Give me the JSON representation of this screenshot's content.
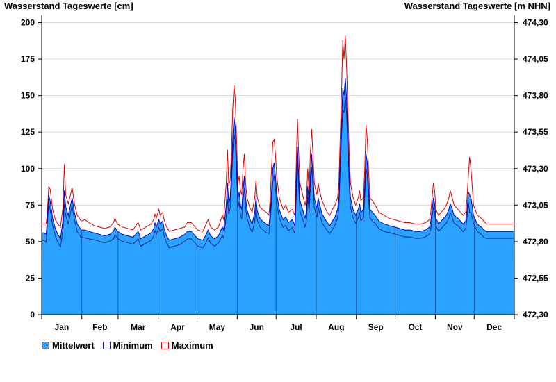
{
  "chart_data": {
    "type": "area",
    "left_axis_title": "Wasserstand Tageswerte [cm]",
    "right_axis_title": "Wasserstand Tageswerte [m NHN]",
    "ylim": [
      0,
      205
    ],
    "yticks": [
      0,
      25,
      50,
      75,
      100,
      125,
      150,
      175,
      200
    ],
    "right_ylim": [
      472.3,
      474.35
    ],
    "right_yticks": [
      "472,30",
      "472,55",
      "472,80",
      "473,05",
      "473,30",
      "473,55",
      "473,80",
      "474,05",
      "474,30"
    ],
    "months": [
      "Jan",
      "Feb",
      "Mar",
      "Apr",
      "May",
      "Jun",
      "Jul",
      "Aug",
      "Sep",
      "Oct",
      "Nov",
      "Dec"
    ],
    "month_days": [
      31,
      28,
      31,
      30,
      31,
      30,
      31,
      31,
      30,
      31,
      30,
      31
    ],
    "grid": true,
    "legend_position": "bottom-left",
    "colors": {
      "mean_fill": "#29a3ff",
      "min_line": "#1a1a80",
      "max_line": "#dd0000",
      "mean_line": "#0000cc"
    },
    "series": [
      {
        "name": "Mittelwert",
        "key": "mean"
      },
      {
        "name": "Minimum",
        "key": "min"
      },
      {
        "name": "Maximum",
        "key": "max"
      }
    ],
    "max_keypoints": [
      [
        1,
        62
      ],
      [
        3,
        62
      ],
      [
        4,
        72
      ],
      [
        5,
        88
      ],
      [
        6,
        86
      ],
      [
        8,
        72
      ],
      [
        10,
        65
      ],
      [
        12,
        62
      ],
      [
        14,
        60
      ],
      [
        16,
        74
      ],
      [
        17,
        103
      ],
      [
        18,
        82
      ],
      [
        20,
        76
      ],
      [
        22,
        83
      ],
      [
        23,
        87
      ],
      [
        25,
        75
      ],
      [
        27,
        68
      ],
      [
        30,
        64
      ],
      [
        33,
        65
      ],
      [
        36,
        63
      ],
      [
        40,
        61
      ],
      [
        44,
        60
      ],
      [
        48,
        59
      ],
      [
        52,
        60
      ],
      [
        55,
        63
      ],
      [
        56,
        66
      ],
      [
        58,
        62
      ],
      [
        62,
        60
      ],
      [
        66,
        59
      ],
      [
        70,
        58
      ],
      [
        73,
        62
      ],
      [
        74,
        63
      ],
      [
        76,
        58
      ],
      [
        80,
        60
      ],
      [
        84,
        62
      ],
      [
        86,
        65
      ],
      [
        87,
        69
      ],
      [
        88,
        66
      ],
      [
        90,
        72
      ],
      [
        91,
        68
      ],
      [
        93,
        70
      ],
      [
        94,
        65
      ],
      [
        96,
        60
      ],
      [
        98,
        57
      ],
      [
        102,
        58
      ],
      [
        106,
        59
      ],
      [
        110,
        60
      ],
      [
        112,
        63
      ],
      [
        115,
        63
      ],
      [
        118,
        60
      ],
      [
        120,
        58
      ],
      [
        124,
        57
      ],
      [
        126,
        61
      ],
      [
        128,
        65
      ],
      [
        130,
        60
      ],
      [
        133,
        58
      ],
      [
        136,
        60
      ],
      [
        139,
        68
      ],
      [
        140,
        65
      ],
      [
        142,
        90
      ],
      [
        143,
        113
      ],
      [
        144,
        88
      ],
      [
        145,
        92
      ],
      [
        146,
        110
      ],
      [
        147,
        140
      ],
      [
        148,
        157
      ],
      [
        149,
        147
      ],
      [
        150,
        120
      ],
      [
        151,
        90
      ],
      [
        152,
        95
      ],
      [
        153,
        85
      ],
      [
        154,
        82
      ],
      [
        155,
        100
      ],
      [
        156,
        110
      ],
      [
        157,
        90
      ],
      [
        158,
        80
      ],
      [
        160,
        74
      ],
      [
        162,
        70
      ],
      [
        164,
        80
      ],
      [
        165,
        92
      ],
      [
        166,
        80
      ],
      [
        168,
        74
      ],
      [
        170,
        72
      ],
      [
        173,
        70
      ],
      [
        175,
        68
      ],
      [
        176,
        80
      ],
      [
        177,
        100
      ],
      [
        178,
        118
      ],
      [
        179,
        120
      ],
      [
        180,
        110
      ],
      [
        181,
        95
      ],
      [
        183,
        80
      ],
      [
        186,
        72
      ],
      [
        188,
        75
      ],
      [
        190,
        70
      ],
      [
        193,
        72
      ],
      [
        195,
        68
      ],
      [
        196,
        100
      ],
      [
        197,
        134
      ],
      [
        198,
        110
      ],
      [
        199,
        90
      ],
      [
        201,
        82
      ],
      [
        203,
        75
      ],
      [
        204,
        80
      ],
      [
        205,
        100
      ],
      [
        206,
        85
      ],
      [
        207,
        110
      ],
      [
        208,
        127
      ],
      [
        209,
        110
      ],
      [
        210,
        90
      ],
      [
        212,
        82
      ],
      [
        213,
        90
      ],
      [
        214,
        85
      ],
      [
        216,
        78
      ],
      [
        218,
        74
      ],
      [
        220,
        70
      ],
      [
        222,
        68
      ],
      [
        224,
        72
      ],
      [
        226,
        75
      ],
      [
        228,
        80
      ],
      [
        229,
        90
      ],
      [
        230,
        120
      ],
      [
        231,
        150
      ],
      [
        232,
        188
      ],
      [
        233,
        175
      ],
      [
        234,
        191
      ],
      [
        235,
        170
      ],
      [
        236,
        140
      ],
      [
        237,
        110
      ],
      [
        238,
        90
      ],
      [
        240,
        80
      ],
      [
        242,
        75
      ],
      [
        244,
        80
      ],
      [
        245,
        85
      ],
      [
        246,
        78
      ],
      [
        248,
        80
      ],
      [
        249,
        100
      ],
      [
        250,
        130
      ],
      [
        251,
        120
      ],
      [
        252,
        98
      ],
      [
        253,
        80
      ],
      [
        255,
        78
      ],
      [
        257,
        75
      ],
      [
        260,
        70
      ],
      [
        264,
        68
      ],
      [
        268,
        66
      ],
      [
        272,
        65
      ],
      [
        276,
        64
      ],
      [
        280,
        63
      ],
      [
        284,
        63
      ],
      [
        288,
        62
      ],
      [
        292,
        62
      ],
      [
        296,
        63
      ],
      [
        299,
        65
      ],
      [
        300,
        70
      ],
      [
        301,
        80
      ],
      [
        302,
        90
      ],
      [
        303,
        85
      ],
      [
        304,
        72
      ],
      [
        306,
        68
      ],
      [
        308,
        70
      ],
      [
        310,
        72
      ],
      [
        312,
        75
      ],
      [
        314,
        80
      ],
      [
        315,
        85
      ],
      [
        316,
        82
      ],
      [
        318,
        75
      ],
      [
        321,
        72
      ],
      [
        323,
        70
      ],
      [
        325,
        68
      ],
      [
        327,
        70
      ],
      [
        328,
        80
      ],
      [
        329,
        95
      ],
      [
        330,
        108
      ],
      [
        331,
        100
      ],
      [
        333,
        75
      ],
      [
        336,
        68
      ],
      [
        339,
        66
      ],
      [
        341,
        64
      ],
      [
        343,
        62
      ]
    ],
    "mean_keypoints": [
      [
        1,
        56
      ],
      [
        3,
        55
      ],
      [
        4,
        68
      ],
      [
        5,
        82
      ],
      [
        6,
        78
      ],
      [
        8,
        66
      ],
      [
        10,
        59
      ],
      [
        12,
        55
      ],
      [
        14,
        52
      ],
      [
        16,
        65
      ],
      [
        17,
        85
      ],
      [
        18,
        74
      ],
      [
        20,
        68
      ],
      [
        22,
        76
      ],
      [
        23,
        80
      ],
      [
        25,
        69
      ],
      [
        27,
        62
      ],
      [
        30,
        58
      ],
      [
        33,
        58
      ],
      [
        36,
        57
      ],
      [
        40,
        56
      ],
      [
        44,
        55
      ],
      [
        48,
        54
      ],
      [
        52,
        55
      ],
      [
        55,
        57
      ],
      [
        56,
        60
      ],
      [
        58,
        57
      ],
      [
        62,
        55
      ],
      [
        66,
        54
      ],
      [
        70,
        53
      ],
      [
        73,
        56
      ],
      [
        74,
        57
      ],
      [
        76,
        52
      ],
      [
        80,
        54
      ],
      [
        84,
        56
      ],
      [
        86,
        59
      ],
      [
        87,
        63
      ],
      [
        88,
        60
      ],
      [
        90,
        65
      ],
      [
        91,
        62
      ],
      [
        93,
        64
      ],
      [
        94,
        59
      ],
      [
        96,
        54
      ],
      [
        98,
        51
      ],
      [
        102,
        52
      ],
      [
        106,
        53
      ],
      [
        110,
        55
      ],
      [
        112,
        57
      ],
      [
        115,
        57
      ],
      [
        118,
        54
      ],
      [
        120,
        52
      ],
      [
        124,
        51
      ],
      [
        126,
        54
      ],
      [
        128,
        58
      ],
      [
        130,
        54
      ],
      [
        133,
        52
      ],
      [
        136,
        54
      ],
      [
        139,
        60
      ],
      [
        140,
        58
      ],
      [
        142,
        75
      ],
      [
        143,
        90
      ],
      [
        144,
        76
      ],
      [
        145,
        80
      ],
      [
        146,
        95
      ],
      [
        147,
        120
      ],
      [
        148,
        135
      ],
      [
        149,
        128
      ],
      [
        150,
        105
      ],
      [
        151,
        80
      ],
      [
        152,
        84
      ],
      [
        153,
        75
      ],
      [
        154,
        72
      ],
      [
        155,
        86
      ],
      [
        156,
        95
      ],
      [
        157,
        80
      ],
      [
        158,
        72
      ],
      [
        160,
        66
      ],
      [
        162,
        62
      ],
      [
        164,
        70
      ],
      [
        165,
        80
      ],
      [
        166,
        71
      ],
      [
        168,
        66
      ],
      [
        170,
        64
      ],
      [
        173,
        62
      ],
      [
        175,
        61
      ],
      [
        176,
        70
      ],
      [
        177,
        85
      ],
      [
        178,
        100
      ],
      [
        179,
        104
      ],
      [
        180,
        95
      ],
      [
        181,
        83
      ],
      [
        183,
        72
      ],
      [
        186,
        65
      ],
      [
        188,
        67
      ],
      [
        190,
        63
      ],
      [
        193,
        65
      ],
      [
        195,
        61
      ],
      [
        196,
        86
      ],
      [
        197,
        115
      ],
      [
        198,
        95
      ],
      [
        199,
        78
      ],
      [
        201,
        72
      ],
      [
        203,
        66
      ],
      [
        204,
        71
      ],
      [
        205,
        88
      ],
      [
        206,
        76
      ],
      [
        207,
        95
      ],
      [
        208,
        110
      ],
      [
        209,
        96
      ],
      [
        210,
        80
      ],
      [
        212,
        73
      ],
      [
        213,
        80
      ],
      [
        214,
        76
      ],
      [
        216,
        69
      ],
      [
        218,
        66
      ],
      [
        220,
        63
      ],
      [
        222,
        61
      ],
      [
        224,
        64
      ],
      [
        226,
        67
      ],
      [
        228,
        72
      ],
      [
        229,
        80
      ],
      [
        230,
        105
      ],
      [
        231,
        130
      ],
      [
        232,
        155
      ],
      [
        233,
        150
      ],
      [
        234,
        162
      ],
      [
        235,
        148
      ],
      [
        236,
        122
      ],
      [
        237,
        96
      ],
      [
        238,
        80
      ],
      [
        240,
        72
      ],
      [
        242,
        68
      ],
      [
        244,
        72
      ],
      [
        245,
        76
      ],
      [
        246,
        70
      ],
      [
        248,
        72
      ],
      [
        249,
        88
      ],
      [
        250,
        110
      ],
      [
        251,
        104
      ],
      [
        252,
        86
      ],
      [
        253,
        72
      ],
      [
        255,
        70
      ],
      [
        257,
        68
      ],
      [
        260,
        64
      ],
      [
        264,
        62
      ],
      [
        268,
        61
      ],
      [
        272,
        60
      ],
      [
        276,
        59
      ],
      [
        280,
        58
      ],
      [
        284,
        58
      ],
      [
        288,
        57
      ],
      [
        292,
        57
      ],
      [
        296,
        58
      ],
      [
        299,
        60
      ],
      [
        300,
        64
      ],
      [
        301,
        72
      ],
      [
        302,
        80
      ],
      [
        303,
        76
      ],
      [
        304,
        66
      ],
      [
        306,
        62
      ],
      [
        308,
        64
      ],
      [
        310,
        66
      ],
      [
        312,
        68
      ],
      [
        314,
        72
      ],
      [
        315,
        76
      ],
      [
        316,
        74
      ],
      [
        318,
        68
      ],
      [
        321,
        66
      ],
      [
        323,
        64
      ],
      [
        325,
        62
      ],
      [
        327,
        64
      ],
      [
        328,
        72
      ],
      [
        329,
        84
      ],
      [
        330,
        82
      ],
      [
        331,
        80
      ],
      [
        333,
        68
      ],
      [
        336,
        62
      ],
      [
        339,
        60
      ],
      [
        341,
        58
      ],
      [
        343,
        57
      ]
    ]
  }
}
